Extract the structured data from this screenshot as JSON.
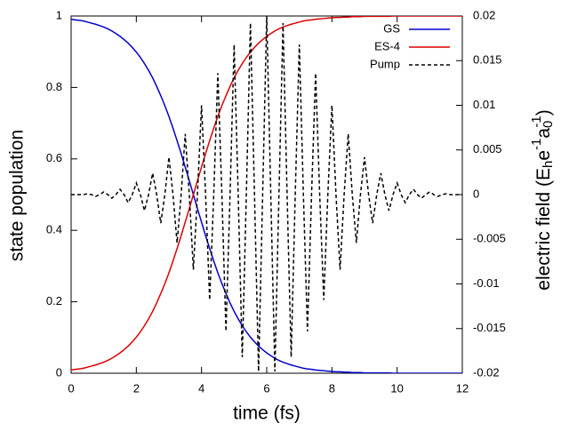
{
  "chart_data": {
    "type": "line",
    "xlabel": "time (fs)",
    "ylabel": "state population",
    "y2label": [
      "electric field (E",
      "h",
      "e",
      "-1",
      "a",
      "0",
      "-1",
      ")"
    ],
    "xlim": [
      0,
      12
    ],
    "xticks": [
      0,
      2,
      4,
      6,
      8,
      10,
      12
    ],
    "ylim": [
      0,
      1
    ],
    "yticks": [
      0,
      0.2,
      0.4,
      0.6,
      0.8,
      1
    ],
    "y2lim": [
      -0.02,
      0.02
    ],
    "y2ticks": [
      -0.02,
      -0.015,
      -0.01,
      -0.005,
      0,
      0.005,
      0.01,
      0.015,
      0.02
    ],
    "legend": "top-right",
    "x": [
      0,
      0.125,
      0.25,
      0.375,
      0.5,
      0.625,
      0.75,
      0.875,
      1,
      1.125,
      1.25,
      1.375,
      1.5,
      1.625,
      1.75,
      1.875,
      2,
      2.125,
      2.25,
      2.375,
      2.5,
      2.625,
      2.75,
      2.875,
      3,
      3.125,
      3.25,
      3.375,
      3.5,
      3.625,
      3.75,
      3.875,
      4,
      4.125,
      4.25,
      4.375,
      4.5,
      4.625,
      4.75,
      4.875,
      5,
      5.125,
      5.25,
      5.375,
      5.5,
      5.625,
      5.75,
      5.875,
      6,
      6.125,
      6.25,
      6.375,
      6.5,
      6.625,
      6.75,
      6.875,
      7,
      7.125,
      7.25,
      7.375,
      7.5,
      7.625,
      7.75,
      7.875,
      8,
      8.125,
      8.25,
      8.375,
      8.5,
      8.625,
      8.75,
      8.875,
      9,
      9.125,
      9.25,
      9.375,
      9.5,
      9.625,
      9.75,
      9.875,
      10,
      10.125,
      10.25,
      10.375,
      10.5,
      10.625,
      10.75,
      10.875,
      11,
      11.125,
      11.25,
      11.375,
      11.5,
      11.625,
      11.75,
      11.875,
      12
    ],
    "series": [
      {
        "name": "GS",
        "color": "#0000cc",
        "axis": "y",
        "values": [
          0.991,
          0.989,
          0.988,
          0.986,
          0.983,
          0.98,
          0.977,
          0.973,
          0.969,
          0.964,
          0.958,
          0.951,
          0.943,
          0.934,
          0.924,
          0.912,
          0.899,
          0.884,
          0.867,
          0.848,
          0.827,
          0.803,
          0.777,
          0.749,
          0.719,
          0.686,
          0.651,
          0.615,
          0.577,
          0.539,
          0.5,
          0.461,
          0.423,
          0.385,
          0.349,
          0.314,
          0.281,
          0.251,
          0.223,
          0.197,
          0.173,
          0.152,
          0.133,
          0.116,
          0.101,
          0.088,
          0.076,
          0.066,
          0.057,
          0.049,
          0.042,
          0.036,
          0.031,
          0.027,
          0.023,
          0.02,
          0.017,
          0.014,
          0.012,
          0.011,
          0.009,
          0.008,
          0.007,
          0.006,
          0.005,
          0.004,
          0.004,
          0.003,
          0.003,
          0.002,
          0.002,
          0.002,
          0.001,
          0.001,
          0.001,
          0.001,
          0.001,
          0.001,
          0.001,
          0,
          0,
          0,
          0,
          0,
          0,
          0,
          0,
          0,
          0,
          0,
          0,
          0,
          0,
          0,
          0,
          0,
          0
        ]
      },
      {
        "name": "ES-4",
        "color": "#dd0000",
        "axis": "y",
        "values": [
          0.009,
          0.011,
          0.012,
          0.014,
          0.017,
          0.02,
          0.023,
          0.027,
          0.031,
          0.036,
          0.042,
          0.049,
          0.057,
          0.066,
          0.076,
          0.088,
          0.101,
          0.116,
          0.133,
          0.152,
          0.173,
          0.197,
          0.223,
          0.251,
          0.281,
          0.314,
          0.349,
          0.385,
          0.423,
          0.461,
          0.5,
          0.539,
          0.577,
          0.615,
          0.651,
          0.686,
          0.719,
          0.749,
          0.777,
          0.803,
          0.827,
          0.848,
          0.867,
          0.884,
          0.899,
          0.912,
          0.924,
          0.934,
          0.943,
          0.951,
          0.958,
          0.964,
          0.969,
          0.973,
          0.977,
          0.98,
          0.983,
          0.986,
          0.988,
          0.989,
          0.991,
          0.992,
          0.993,
          0.994,
          0.995,
          0.996,
          0.996,
          0.997,
          0.997,
          0.998,
          0.998,
          0.998,
          0.999,
          0.999,
          0.999,
          0.999,
          0.999,
          0.999,
          0.999,
          1,
          1,
          1,
          1,
          1,
          1,
          1,
          1,
          1,
          1,
          1,
          1,
          1,
          1,
          1,
          1,
          1,
          1
        ]
      },
      {
        "name": "Pump",
        "color": "#000000",
        "axis": "y2",
        "dashed": true,
        "values": [
          0,
          0,
          0,
          0,
          0.0001,
          0,
          -0.0002,
          0,
          0.0003,
          0,
          -0.0004,
          0,
          0.0006,
          0,
          -0.0009,
          0,
          0.0013,
          0,
          -0.0018,
          0,
          0.0024,
          0,
          -0.0032,
          0,
          0.0042,
          0,
          -0.0054,
          0,
          0.0068,
          0,
          -0.0084,
          0,
          0.01,
          0,
          -0.0118,
          0,
          0.0136,
          0,
          -0.0153,
          0,
          0.0168,
          0,
          -0.0182,
          0,
          0.0192,
          0,
          -0.0198,
          0,
          0.02,
          0,
          -0.0198,
          0,
          0.0192,
          0,
          -0.0182,
          0,
          0.0168,
          0,
          -0.0153,
          0,
          0.0136,
          0,
          -0.0118,
          0,
          0.01,
          0,
          -0.0084,
          0,
          0.0068,
          0,
          -0.0054,
          0,
          0.0042,
          0,
          -0.0032,
          0,
          0.0024,
          0,
          -0.0018,
          0,
          0.0013,
          0,
          -0.0009,
          0,
          0.0006,
          0,
          -0.0004,
          0,
          0.0003,
          0,
          -0.0002,
          0,
          0.0001,
          0,
          0,
          0,
          0
        ]
      }
    ]
  }
}
